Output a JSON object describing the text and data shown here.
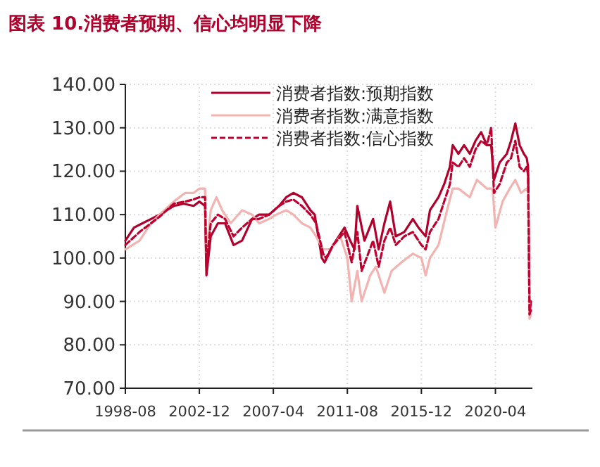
{
  "chart_data": {
    "type": "line",
    "title": "图表 10.消费者预期、信心均明显下降",
    "xlim": [
      "1998-08",
      "2022-06"
    ],
    "xticks": [
      "1998-08",
      "2002-12",
      "2007-04",
      "2011-08",
      "2015-12",
      "2020-04"
    ],
    "ylim": [
      70,
      140
    ],
    "yticks": [
      {
        "value": 70,
        "label": "70.00"
      },
      {
        "value": 80,
        "label": "80.00"
      },
      {
        "value": 90,
        "label": "90.00"
      },
      {
        "value": 100,
        "label": "100.00"
      },
      {
        "value": 110,
        "label": "110.00"
      },
      {
        "value": 120,
        "label": "120.00"
      },
      {
        "value": 130,
        "label": "130.00"
      },
      {
        "value": 140,
        "label": "140.00"
      }
    ],
    "grid": true,
    "legend": "top right",
    "series": [
      {
        "name": "消费者指数:预期指数",
        "color": "#b2002d",
        "line_style": "solid",
        "x": [
          "1998-08",
          "1999-02",
          "1999-08",
          "2000-02",
          "2000-08",
          "2001-06",
          "2002-01",
          "2002-08",
          "2002-12",
          "2003-04",
          "2003-05",
          "2003-08",
          "2004-01",
          "2004-06",
          "2004-12",
          "2005-06",
          "2006-01",
          "2006-06",
          "2007-01",
          "2007-08",
          "2008-01",
          "2008-06",
          "2008-12",
          "2009-06",
          "2009-09",
          "2010-02",
          "2010-04",
          "2010-10",
          "2011-06",
          "2011-10",
          "2012-01",
          "2012-03",
          "2012-08",
          "2013-02",
          "2013-06",
          "2013-10",
          "2014-02",
          "2014-06",
          "2014-12",
          "2015-06",
          "2015-10",
          "2016-03",
          "2016-06",
          "2016-12",
          "2017-04",
          "2017-08",
          "2017-10",
          "2018-02",
          "2018-06",
          "2018-10",
          "2019-02",
          "2019-06",
          "2019-10",
          "2020-01",
          "2020-03",
          "2020-07",
          "2020-12",
          "2021-03",
          "2021-06",
          "2021-09",
          "2021-12",
          "2022-02",
          "2022-03",
          "2022-04",
          "2022-05"
        ],
        "values": [
          104,
          107,
          108,
          109,
          110,
          112,
          112.5,
          112,
          113,
          112,
          96,
          105,
          108,
          108,
          103,
          104,
          109,
          110,
          110,
          112,
          114,
          115,
          114,
          111,
          110,
          100,
          99,
          103,
          107,
          104,
          102,
          112,
          104,
          109,
          102,
          108,
          113,
          105,
          106,
          109,
          107,
          105,
          111,
          114,
          117,
          121,
          126,
          124,
          126,
          124,
          127,
          129,
          126,
          126,
          118,
          122,
          124,
          127,
          131,
          126,
          124,
          123,
          121,
          87,
          90
        ]
      },
      {
        "name": "消费者指数:满意指数",
        "color": "#f2b3b1",
        "line_style": "solid",
        "x": [
          "1998-08",
          "1999-06",
          "2000-02",
          "2000-08",
          "2001-06",
          "2002-02",
          "2002-08",
          "2002-12",
          "2003-04",
          "2003-05",
          "2003-08",
          "2003-12",
          "2004-04",
          "2004-10",
          "2005-06",
          "2006-01",
          "2006-06",
          "2007-01",
          "2007-06",
          "2008-01",
          "2008-06",
          "2008-12",
          "2009-06",
          "2009-10",
          "2010-03",
          "2010-08",
          "2011-03",
          "2011-08",
          "2011-11",
          "2012-03",
          "2012-06",
          "2012-12",
          "2013-04",
          "2013-10",
          "2014-03",
          "2014-10",
          "2015-06",
          "2015-12",
          "2016-03",
          "2016-06",
          "2016-12",
          "2017-06",
          "2017-10",
          "2018-02",
          "2018-10",
          "2019-03",
          "2019-10",
          "2020-02",
          "2020-04",
          "2020-09",
          "2021-02",
          "2021-06",
          "2021-10",
          "2022-02",
          "2022-03",
          "2022-04",
          "2022-05"
        ],
        "values": [
          102,
          104,
          108,
          110,
          113,
          115,
          115,
          116,
          116,
          101,
          111,
          114,
          111,
          108,
          111,
          110,
          108,
          109,
          110,
          111,
          110,
          108,
          107,
          105,
          102,
          102,
          105,
          100,
          90,
          97,
          90,
          96,
          98,
          92,
          97,
          99,
          101,
          100,
          96,
          100,
          103,
          111,
          116,
          116,
          114,
          118,
          116,
          116,
          107,
          113,
          116,
          118,
          115,
          116,
          115,
          86,
          87
        ]
      },
      {
        "name": "消费者指数:信心指数",
        "color": "#c0002f",
        "line_style": "dashed",
        "x": [
          "1998-08",
          "1999-06",
          "2000-02",
          "2000-08",
          "2001-06",
          "2002-02",
          "2002-08",
          "2002-12",
          "2003-04",
          "2003-05",
          "2003-08",
          "2004-01",
          "2004-06",
          "2004-12",
          "2005-06",
          "2006-01",
          "2006-06",
          "2007-01",
          "2007-08",
          "2008-01",
          "2008-06",
          "2008-12",
          "2009-06",
          "2009-10",
          "2010-03",
          "2010-05",
          "2010-10",
          "2011-06",
          "2011-11",
          "2012-03",
          "2012-06",
          "2013-02",
          "2013-06",
          "2013-10",
          "2014-02",
          "2014-06",
          "2014-12",
          "2015-06",
          "2015-12",
          "2016-03",
          "2016-06",
          "2016-12",
          "2017-04",
          "2017-08",
          "2017-10",
          "2018-02",
          "2018-06",
          "2018-10",
          "2019-02",
          "2019-06",
          "2019-10",
          "2020-01",
          "2020-03",
          "2020-07",
          "2020-12",
          "2021-03",
          "2021-06",
          "2021-09",
          "2021-12",
          "2022-02",
          "2022-03",
          "2022-04",
          "2022-05"
        ],
        "values": [
          103,
          106,
          108,
          109.5,
          112.5,
          113,
          113.5,
          114,
          114,
          98,
          108,
          110,
          109,
          105,
          107,
          109,
          109,
          110,
          112,
          113,
          113.5,
          112,
          110,
          108,
          101,
          100,
          103,
          106,
          99,
          106,
          97,
          104,
          98,
          104,
          107,
          103,
          105,
          106,
          103,
          102,
          106,
          109,
          113,
          117,
          122,
          121,
          123,
          121,
          125,
          127,
          126,
          130,
          115,
          117,
          122,
          123,
          127,
          121,
          120,
          121,
          119,
          87,
          88
        ]
      }
    ]
  }
}
